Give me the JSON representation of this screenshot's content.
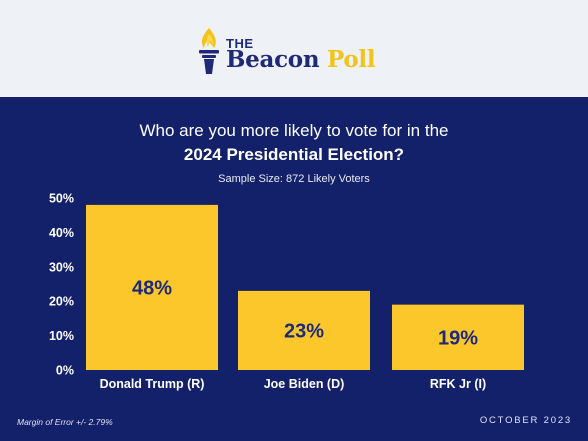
{
  "brand": {
    "the": "THE",
    "name_main": "Beacon",
    "name_accent": "Poll",
    "icon": "torch-icon"
  },
  "colors": {
    "header_bg": "#eef1f6",
    "main_bg": "#13206a",
    "bar": "#fcc72b",
    "bar_label": "#1e2a78",
    "brand_blue": "#1e2a78",
    "brand_gold": "#f2c318"
  },
  "chart_data": {
    "type": "bar",
    "title_line1": "Who are you more likely to vote for in the",
    "title_line2": "2024 Presidential Election?",
    "subtitle": "Sample Size: 872 Likely Voters",
    "categories": [
      "Donald Trump (R)",
      "Joe Biden (D)",
      "RFK Jr (I)"
    ],
    "values": [
      48,
      23,
      19
    ],
    "data_labels": [
      "48%",
      "23%",
      "19%"
    ],
    "ylim": [
      0,
      50
    ],
    "yticks": [
      0,
      10,
      20,
      30,
      40,
      50
    ],
    "ytick_labels": [
      "0%",
      "10%",
      "20%",
      "30%",
      "40%",
      "50%"
    ],
    "grid": false,
    "legend": "none"
  },
  "footer": {
    "margin_of_error": "Margin of Error +/- 2.79%",
    "date": "OCTOBER 2023"
  }
}
